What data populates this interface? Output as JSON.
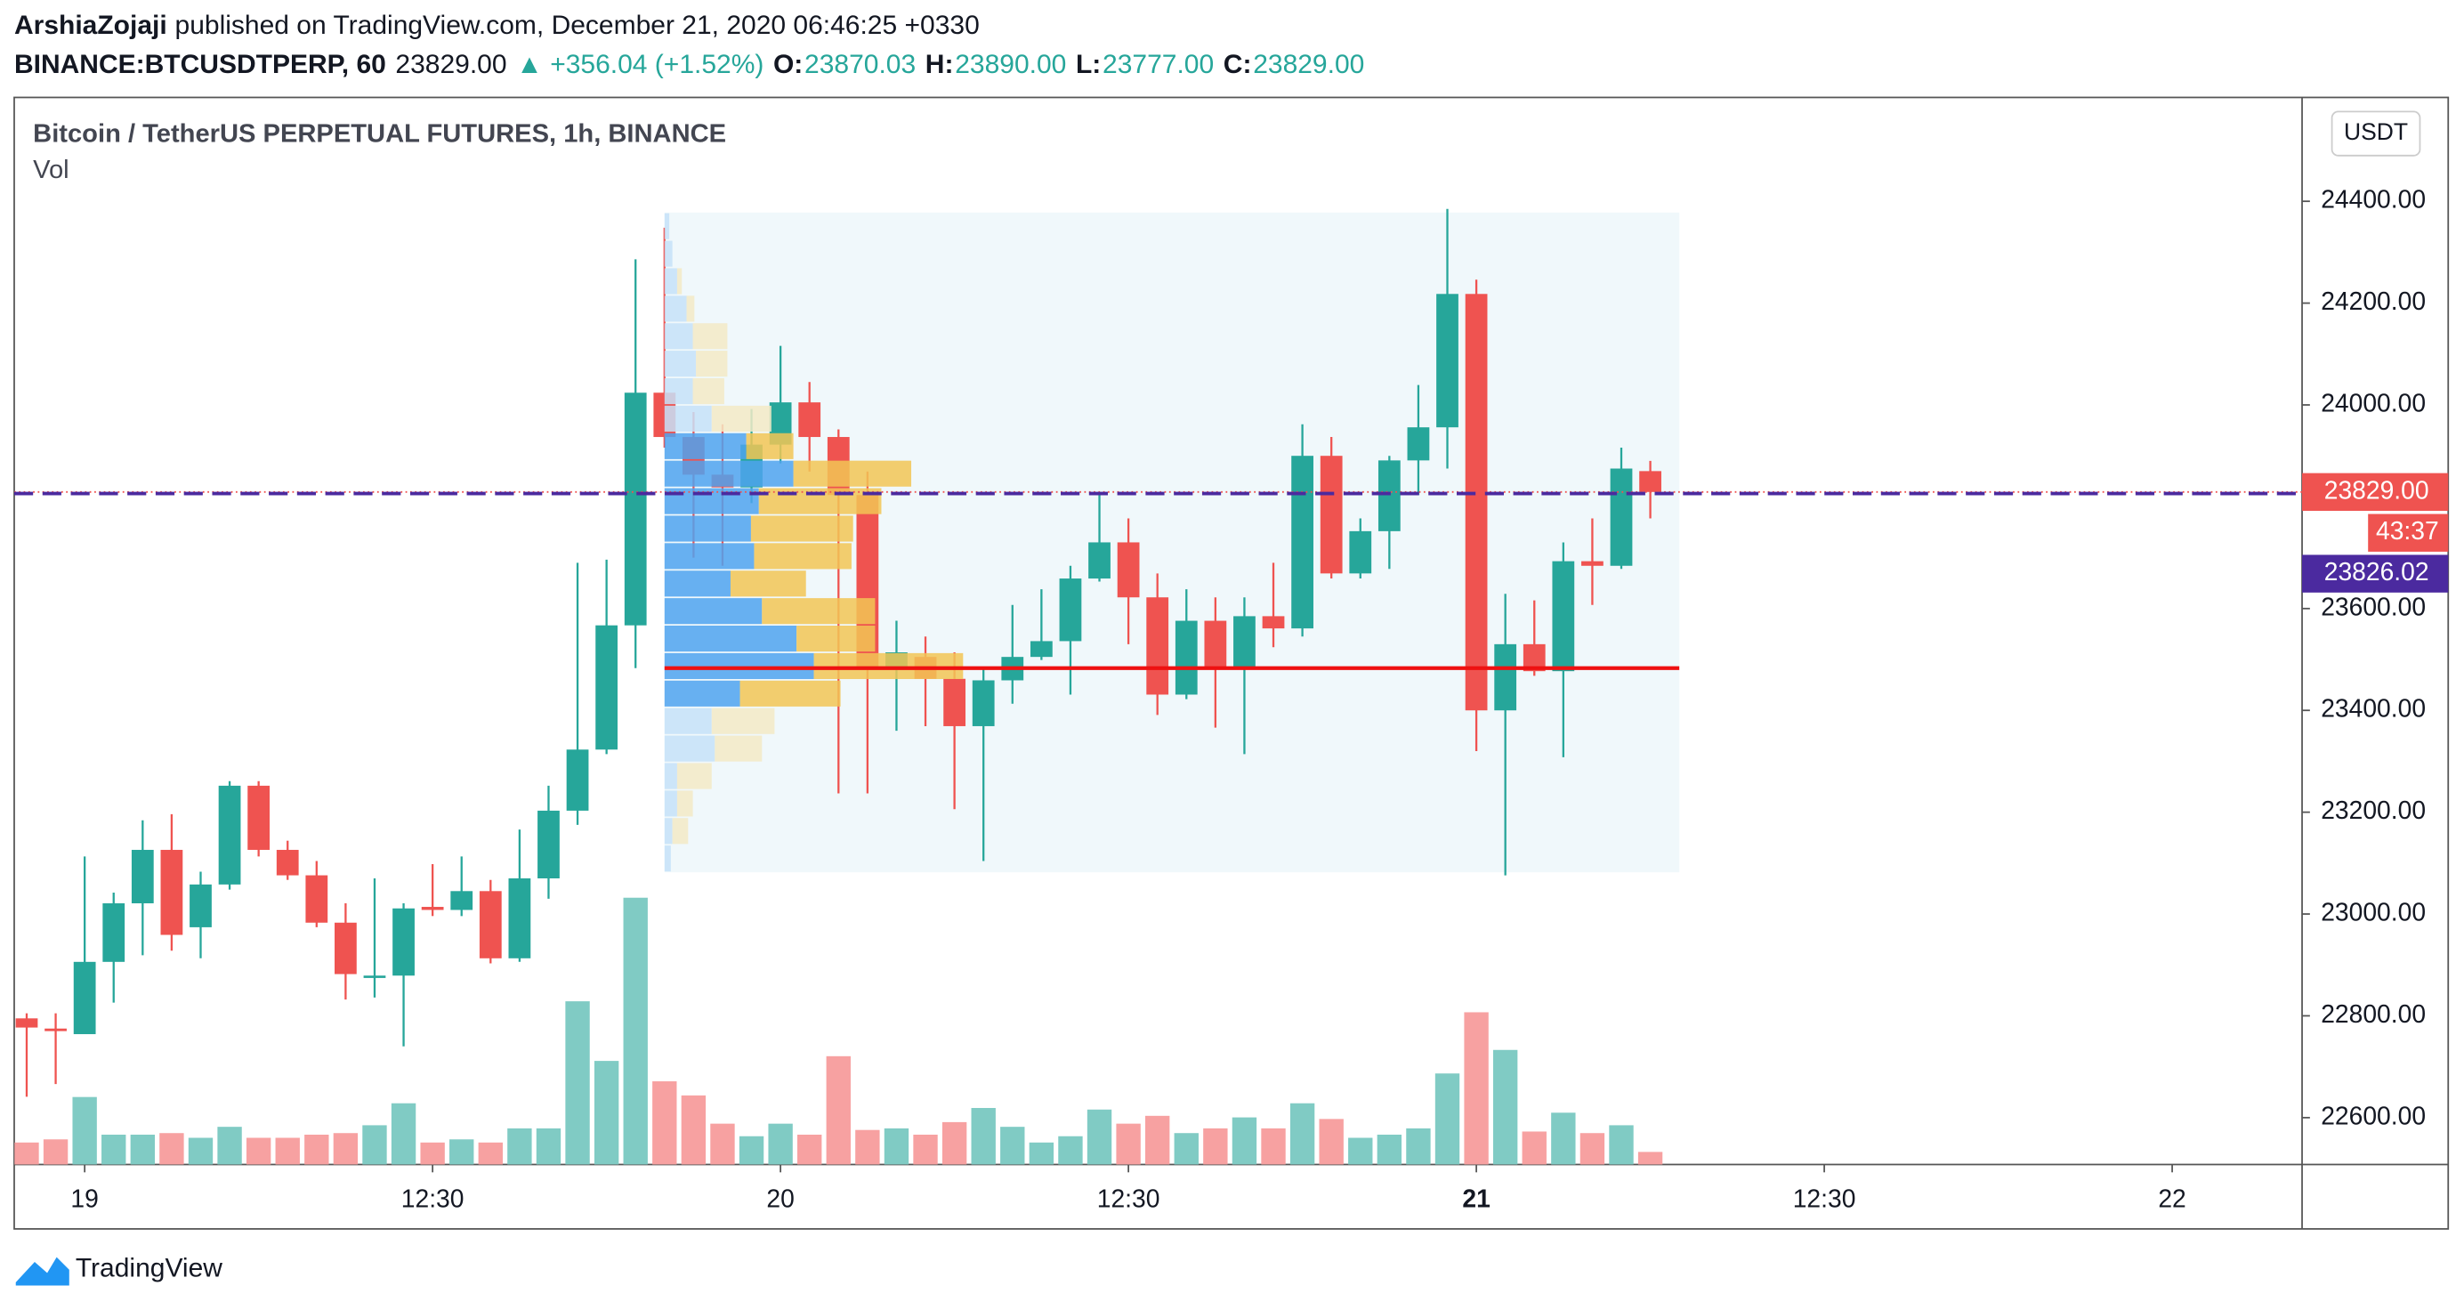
{
  "chart_data": {
    "type": "candlestick",
    "header": {
      "author": "ArshiaZojaji",
      "published": "published on TradingView.com, December 21, 2020 06:46:25 +0330",
      "quote": [
        {
          "text": "BINANCE:BTCUSDTPERP, 60",
          "bold": true,
          "color": "#131722"
        },
        {
          "text": "23829.00",
          "bold": false,
          "color": "#131722"
        },
        {
          "text": "▲ +356.04 (+1.52%)",
          "bold": false,
          "color": "#26a69a"
        },
        {
          "text": "O:",
          "bold": true,
          "color": "#131722"
        },
        {
          "text": "23870.03",
          "bold": false,
          "color": "#26a69a"
        },
        {
          "text": "H:",
          "bold": true,
          "color": "#131722"
        },
        {
          "text": "23890.00",
          "bold": false,
          "color": "#26a69a"
        },
        {
          "text": "L:",
          "bold": true,
          "color": "#131722"
        },
        {
          "text": "23777.00",
          "bold": false,
          "color": "#26a69a"
        },
        {
          "text": "C:",
          "bold": true,
          "color": "#131722"
        },
        {
          "text": "23829.00",
          "bold": false,
          "color": "#26a69a"
        }
      ]
    },
    "title": "Bitcoin / TetherUS PERPETUAL FUTURES, 1h, BINANCE",
    "subtitle": "Vol",
    "currency": "USDT",
    "brand": "TradingView",
    "up_color": "#26a69a",
    "down_color": "#ef5350",
    "volume_up_color": "#80cbc4",
    "volume_down_color": "#f7a1a1",
    "x": [
      0,
      1,
      2,
      3,
      4,
      5,
      6,
      7,
      8,
      9,
      10,
      11,
      12,
      13,
      14,
      15,
      16,
      17,
      18,
      19,
      20,
      21,
      22,
      23,
      24,
      25,
      26,
      27,
      28,
      29,
      30,
      31,
      32,
      33,
      34,
      35,
      36,
      37,
      38,
      39,
      40,
      41,
      42,
      43,
      44,
      45,
      46,
      47,
      48,
      49,
      50,
      51,
      52,
      53,
      54,
      55,
      56
    ],
    "open": [
      22795,
      22775,
      22764,
      22906,
      23021,
      23126,
      22974,
      23058,
      23252,
      23126,
      23076,
      22983,
      22876,
      22879,
      23014,
      23008,
      23045,
      22913,
      23070,
      23203,
      23323,
      23567,
      24024,
      23937,
      23863,
      23838,
      23922,
      24005,
      23937,
      23823,
      23483,
      23505,
      23462,
      23369,
      23459,
      23505,
      23536,
      23659,
      23730,
      23622,
      23431,
      23576,
      23483,
      23585,
      23561,
      23900,
      23669,
      23752,
      23891,
      23956,
      24218,
      23400,
      23530,
      23477,
      23693,
      23684,
      23870
    ],
    "high": [
      22805,
      22805,
      23113,
      23042,
      23184,
      23196,
      23083,
      23261,
      23261,
      23144,
      23104,
      23021,
      23070,
      23021,
      23098,
      23113,
      23067,
      23166,
      23252,
      23690,
      23696,
      24286,
      24348,
      23986,
      23962,
      23992,
      24116,
      24045,
      23952,
      23869,
      23576,
      23545,
      23514,
      23483,
      23607,
      23638,
      23684,
      23823,
      23777,
      23669,
      23638,
      23622,
      23622,
      23690,
      23962,
      23937,
      23777,
      23900,
      24039,
      24385,
      24246,
      23629,
      23616,
      23730,
      23777,
      23916,
      23890
    ],
    "low": [
      22641,
      22666,
      22764,
      22826,
      22919,
      22928,
      22913,
      23048,
      23113,
      23067,
      22974,
      22832,
      22836,
      22740,
      22996,
      22996,
      22903,
      22906,
      23030,
      23175,
      23314,
      23483,
      23916,
      23700,
      23684,
      23807,
      23885,
      23869,
      23237,
      23237,
      23360,
      23369,
      23206,
      23104,
      23413,
      23499,
      23431,
      23653,
      23530,
      23391,
      23422,
      23366,
      23314,
      23524,
      23545,
      23659,
      23659,
      23678,
      23823,
      23875,
      23320,
      23076,
      23468,
      23308,
      23607,
      23678,
      23777
    ],
    "close": [
      22777,
      22770,
      22906,
      23021,
      23126,
      22959,
      23058,
      23252,
      23126,
      23076,
      22983,
      22882,
      22879,
      23011,
      23008,
      23045,
      22913,
      23070,
      23203,
      23323,
      23567,
      24024,
      23937,
      23863,
      23838,
      23922,
      24005,
      23937,
      23823,
      23483,
      23514,
      23462,
      23369,
      23459,
      23505,
      23536,
      23659,
      23730,
      23622,
      23431,
      23576,
      23483,
      23585,
      23561,
      23900,
      23669,
      23752,
      23891,
      23956,
      24218,
      23400,
      23530,
      23477,
      23693,
      23684,
      23875,
      23829
    ],
    "volume": [
      14,
      16,
      43,
      19,
      19,
      20,
      17,
      24,
      17,
      17,
      19,
      20,
      25,
      39,
      14,
      16,
      14,
      23,
      23,
      104,
      66,
      170,
      53,
      44,
      26,
      18,
      26,
      19,
      69,
      22,
      23,
      19,
      27,
      36,
      24,
      14,
      18,
      35,
      26,
      31,
      20,
      23,
      30,
      23,
      39,
      29,
      17,
      19,
      23,
      58,
      97,
      73,
      21,
      33,
      20,
      25,
      8
    ],
    "volume_lim": [
      0,
      680
    ],
    "xlim": [
      -0.43,
      78.48
    ],
    "xticks": [
      {
        "value": 2,
        "label": "19"
      },
      {
        "value": 14,
        "label": "12:30"
      },
      {
        "value": 26,
        "label": "20"
      },
      {
        "value": 38,
        "label": "12:30"
      },
      {
        "value": 50,
        "label": "21"
      },
      {
        "value": 62,
        "label": "12:30"
      },
      {
        "value": 74,
        "label": "22"
      }
    ],
    "ylim": [
      22508,
      24604
    ],
    "yticks": [
      {
        "value": 22600,
        "label": "22600.00"
      },
      {
        "value": 22800,
        "label": "22800.00"
      },
      {
        "value": 23000,
        "label": "23000.00"
      },
      {
        "value": 23200,
        "label": "23200.00"
      },
      {
        "value": 23400,
        "label": "23400.00"
      },
      {
        "value": 23600,
        "label": "23600.00"
      },
      {
        "value": 24000,
        "label": "24000.00"
      },
      {
        "value": 24200,
        "label": "24200.00"
      },
      {
        "value": 24400,
        "label": "24400.00"
      }
    ],
    "profile": {
      "x_range": [
        22,
        57
      ],
      "price_range": [
        23082,
        24378
      ],
      "up": [
        3,
        5,
        8,
        14,
        18,
        20,
        18,
        30,
        52,
        82,
        60,
        55,
        57,
        42,
        62,
        84,
        95,
        48,
        30,
        32,
        8,
        8,
        5,
        4
      ],
      "down": [
        0,
        0,
        3,
        5,
        22,
        20,
        20,
        38,
        30,
        75,
        78,
        65,
        62,
        48,
        72,
        50,
        95,
        64,
        40,
        30,
        22,
        10,
        10,
        0
      ],
      "value_area": [
        23406,
        23946
      ],
      "poc": 23483,
      "up_color": "#4fa3ef",
      "down_color": "#f2c555",
      "up_faded_color": "#c6e2f8",
      "down_faded_color": "#f3eac6",
      "poc_color": "#ee1111",
      "background": "#e3f2f8"
    },
    "price_lines": [
      {
        "value": 23829,
        "label": "23829.00",
        "color": "#ef5350",
        "style": "dotted"
      },
      {
        "value": 23826.02,
        "label": "23826.02",
        "color": "#4b2a9f",
        "style": "dashed"
      }
    ],
    "countdown": "43:37"
  }
}
